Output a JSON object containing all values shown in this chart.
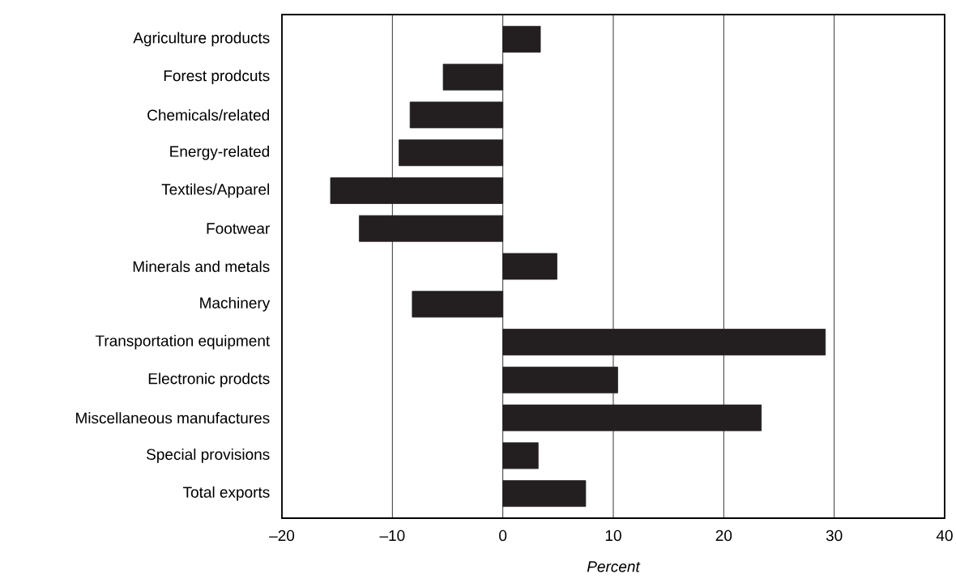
{
  "chart_data": {
    "type": "bar",
    "orientation": "horizontal",
    "xlabel": "Percent",
    "categories": [
      "Agriculture products",
      "Forest prodcuts",
      "Chemicals/related",
      "Energy-related",
      "Textiles/Apparel",
      "Footwear",
      "Minerals and metals",
      "Machinery",
      "Transportation equipment",
      "Electronic prodcts",
      "Miscellaneous manufactures",
      "Special provisions",
      "Total exports"
    ],
    "values": [
      3.4,
      -5.4,
      -8.4,
      -9.4,
      -15.6,
      -13.0,
      4.9,
      -8.2,
      29.2,
      10.4,
      23.4,
      3.2,
      7.5
    ],
    "color": "#231f20",
    "xlim": [
      -20,
      40
    ],
    "xticks": [
      {
        "value": -20,
        "label": "–20"
      },
      {
        "value": -10,
        "label": "–10"
      },
      0,
      10,
      20,
      30,
      40
    ],
    "grid": "x"
  }
}
